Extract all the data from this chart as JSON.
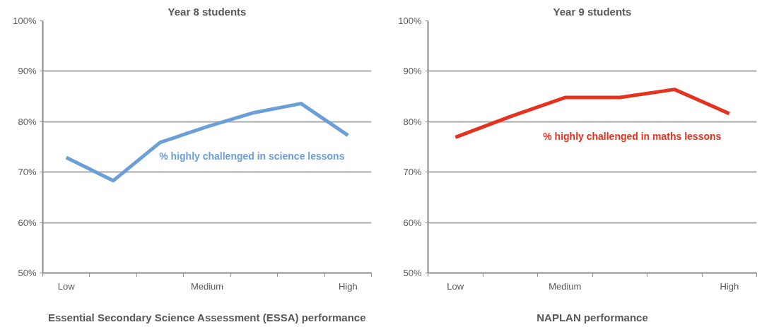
{
  "chart_data": [
    {
      "type": "line",
      "title": "Year 8 students",
      "xlabel": "Essential Secondary Science Assessment (ESSA) performance",
      "categories": [
        "Low",
        null,
        null,
        "Medium",
        null,
        null,
        "High"
      ],
      "series": [
        {
          "name": "% highly challenged in science lessons",
          "color": "#6a9fd8",
          "values": [
            72.9,
            68.3,
            75.9,
            79.0,
            81.8,
            83.6,
            77.3
          ]
        }
      ],
      "ylim": [
        50,
        100
      ],
      "yticks": [
        {
          "value": 50,
          "label": "50%"
        },
        {
          "value": 60,
          "label": "60%"
        },
        {
          "value": 70,
          "label": "70%"
        },
        {
          "value": 80,
          "label": "80%"
        },
        {
          "value": 90,
          "label": "90%"
        },
        {
          "value": 100,
          "label": "100%"
        }
      ],
      "grid": "y"
    },
    {
      "type": "line",
      "title": "Year 9 students",
      "xlabel": "NAPLAN performance",
      "categories": [
        "Low",
        null,
        "Medium",
        null,
        null,
        "High"
      ],
      "series": [
        {
          "name": "% highly challenged in maths lessons",
          "color": "#e5321f",
          "values": [
            76.9,
            81.0,
            84.8,
            84.8,
            86.4,
            81.6
          ]
        }
      ],
      "ylim": [
        50,
        100
      ],
      "yticks": [
        {
          "value": 50,
          "label": "50%"
        },
        {
          "value": 60,
          "label": "60%"
        },
        {
          "value": 70,
          "label": "70%"
        },
        {
          "value": 80,
          "label": "80%"
        },
        {
          "value": 90,
          "label": "90%"
        },
        {
          "value": 100,
          "label": "100%"
        }
      ],
      "grid": "y"
    }
  ]
}
